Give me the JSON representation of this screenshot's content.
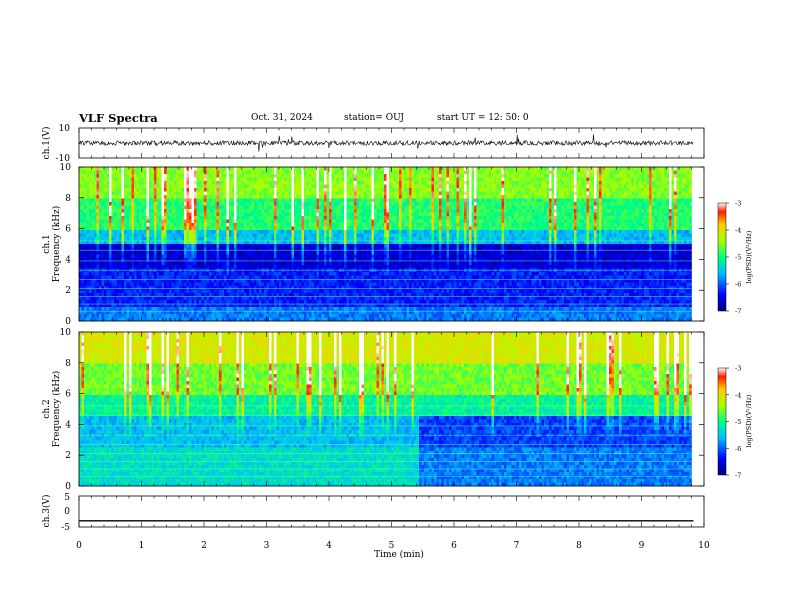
{
  "header": {
    "title": "VLF Spectra",
    "date": "Oct. 31, 2024",
    "station": "station= OUJ",
    "start": "start  UT  =   12: 50:  0"
  },
  "chart_data": [
    {
      "type": "line",
      "id": "ch1-waveform",
      "ylabel": "ch.1(V)",
      "ylim": [
        -10,
        10
      ],
      "y_ticks": [
        "10",
        "-10"
      ],
      "x": [
        0,
        1,
        2,
        3,
        4,
        5,
        6,
        7,
        8,
        9,
        9.8
      ],
      "description_values": [
        0,
        0,
        0,
        0,
        0,
        0,
        0,
        0,
        0,
        0,
        0
      ],
      "xlim": [
        0,
        10
      ]
    },
    {
      "type": "heatmap",
      "id": "ch1-spectrogram",
      "ylabel_line1": "ch.1",
      "ylabel_line2": "Frequency (kHz)",
      "ylim": [
        0,
        10
      ],
      "y_ticks": [
        "0",
        "2",
        "4",
        "6",
        "8",
        "10"
      ],
      "xlim": [
        0,
        10
      ],
      "data_end_min": 9.83,
      "colorbar": {
        "label": "log(PSD)(V²/Hz)",
        "range": [
          -7,
          -3
        ],
        "ticks": [
          "-3",
          "-4",
          "-5",
          "-6",
          "-7"
        ]
      }
    },
    {
      "type": "heatmap",
      "id": "ch2-spectrogram",
      "ylabel_line1": "ch.2",
      "ylabel_line2": "Frequency (kHz)",
      "ylim": [
        0,
        10
      ],
      "y_ticks": [
        "0",
        "2",
        "4",
        "6",
        "8",
        "10"
      ],
      "xlim": [
        0,
        10
      ],
      "data_end_min": 9.83,
      "colorbar": {
        "label": "log(PSD)(V²/Hz)",
        "range": [
          -7,
          -3
        ],
        "ticks": [
          "-3",
          "-4",
          "-5",
          "-6",
          "-7"
        ]
      }
    },
    {
      "type": "line",
      "id": "ch3-waveform",
      "ylabel": "ch.3(V)",
      "ylim": [
        -5,
        5
      ],
      "y_ticks": [
        "5",
        "0",
        "-5"
      ],
      "x": [
        0,
        9.83
      ],
      "y": [
        -3,
        -3
      ],
      "xlim": [
        0,
        10
      ]
    }
  ],
  "x_axis": {
    "label": "Time  (min)",
    "ticks": [
      "0",
      "1",
      "2",
      "3",
      "4",
      "5",
      "6",
      "7",
      "8",
      "9",
      "10"
    ]
  }
}
